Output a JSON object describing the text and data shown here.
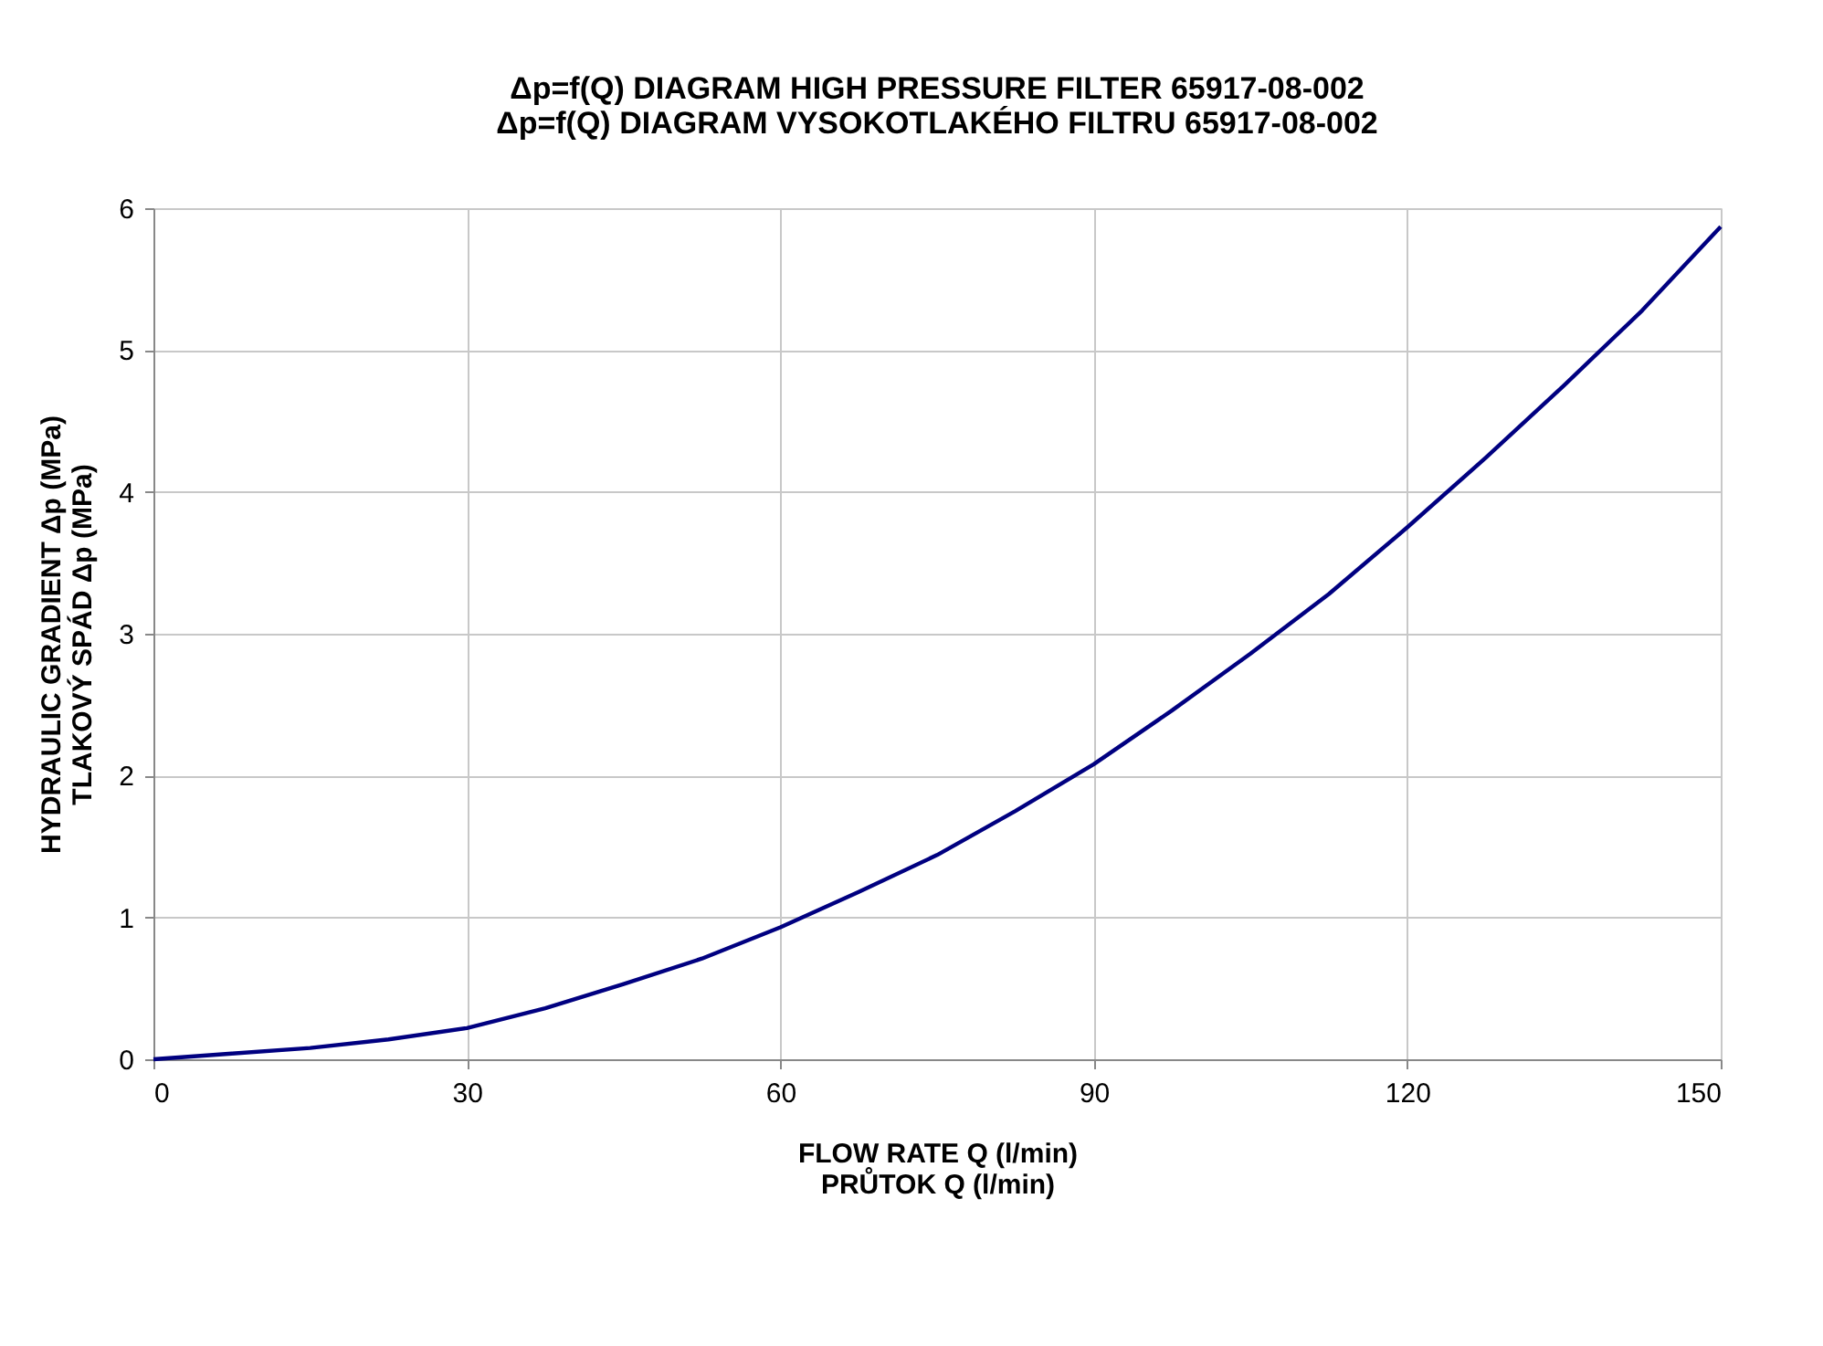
{
  "chart_data": {
    "type": "line",
    "title": [
      "Δp=f(Q) DIAGRAM HIGH PRESSURE FILTER 65917-08-002",
      "Δp=f(Q) DIAGRAM VYSOKOTLAKÉHO FILTRU 65917-08-002"
    ],
    "xlabel": [
      "FLOW RATE Q (l/min)",
      "PRŮTOK Q (l/min)"
    ],
    "ylabel": [
      "HYDRAULIC GRADIENT Δp (MPa)",
      "TLAKOVÝ SPÁD Δp (MPa)"
    ],
    "x": [
      0,
      7.5,
      15,
      22.5,
      30,
      37.5,
      45,
      52.5,
      60,
      67.5,
      75,
      82.5,
      90,
      97.5,
      105,
      112.5,
      120,
      127.5,
      135,
      142.5,
      150
    ],
    "series": [
      {
        "color": "#000080",
        "values": [
          0,
          0.04,
          0.08,
          0.14,
          0.22,
          0.36,
          0.53,
          0.71,
          0.93,
          1.18,
          1.44,
          1.75,
          2.08,
          2.46,
          2.86,
          3.28,
          3.75,
          4.24,
          4.75,
          5.28,
          5.87
        ]
      }
    ],
    "xlim": [
      0,
      150
    ],
    "xticks": [
      0,
      30,
      60,
      90,
      120,
      150
    ],
    "ylim": [
      0,
      6
    ],
    "yticks": [
      0,
      1,
      2,
      3,
      4,
      5,
      6
    ],
    "grid": true,
    "marker": "none",
    "line_style": "solid",
    "legend": false
  }
}
